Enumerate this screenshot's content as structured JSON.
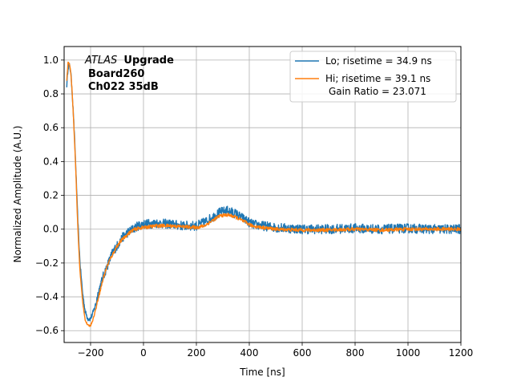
{
  "chart_data": {
    "type": "line",
    "title": "",
    "xlabel": "Time [ns]",
    "ylabel": "Normalized Amplitude (A.U.)",
    "xlim": [
      -300,
      1200
    ],
    "ylim": [
      -0.67,
      1.08
    ],
    "xticks": [
      -200,
      0,
      200,
      400,
      600,
      800,
      1000,
      1200
    ],
    "yticks": [
      -0.6,
      -0.4,
      -0.2,
      0.0,
      0.2,
      0.4,
      0.6,
      0.8,
      1.0
    ],
    "xtick_labels": [
      "−200",
      "0",
      "200",
      "400",
      "600",
      "800",
      "1000",
      "1200"
    ],
    "ytick_labels": [
      "−0.6",
      "−0.4",
      "−0.2",
      "0.0",
      "0.2",
      "0.4",
      "0.6",
      "0.8",
      "1.0"
    ],
    "grid": true,
    "legend_position": "top-right",
    "annotation": {
      "italic": "ATLAS",
      "bold": "Upgrade",
      "line2": "Board260",
      "line3": "Ch022 35dB"
    },
    "legend": {
      "lo": "Lo; risetime = 34.9 ns",
      "hi_line1": "Hi; risetime = 39.1 ns",
      "hi_line2": "Gain Ratio = 23.071"
    },
    "series": [
      {
        "name": "Lo; risetime = 34.9 ns",
        "color": "#1f77b4",
        "noise": 0.028,
        "x": [
          -290,
          -285,
          -280,
          -275,
          -270,
          -265,
          -260,
          -255,
          -250,
          -245,
          -240,
          -230,
          -220,
          -210,
          -200,
          -190,
          -180,
          -170,
          -160,
          -150,
          -140,
          -130,
          -120,
          -110,
          -100,
          -80,
          -60,
          -40,
          -20,
          0,
          50,
          100,
          150,
          200,
          230,
          260,
          290,
          320,
          350,
          380,
          410,
          450,
          500,
          600,
          700,
          800,
          900,
          1000,
          1100,
          1200
        ],
        "y": [
          0.85,
          0.96,
          0.97,
          0.93,
          0.82,
          0.68,
          0.52,
          0.33,
          0.12,
          -0.05,
          -0.2,
          -0.38,
          -0.49,
          -0.53,
          -0.53,
          -0.49,
          -0.44,
          -0.37,
          -0.32,
          -0.27,
          -0.23,
          -0.19,
          -0.15,
          -0.12,
          -0.1,
          -0.05,
          -0.02,
          0.0,
          0.02,
          0.03,
          0.035,
          0.03,
          0.02,
          0.02,
          0.04,
          0.07,
          0.1,
          0.11,
          0.09,
          0.06,
          0.03,
          0.02,
          0.01,
          0.0,
          0.0,
          0.005,
          0.0,
          0.005,
          0.0,
          0.0
        ]
      },
      {
        "name": "Hi; risetime = 39.1 ns Gain Ratio = 23.071",
        "color": "#ff7f0e",
        "noise": 0.01,
        "x": [
          -290,
          -285,
          -280,
          -275,
          -270,
          -265,
          -260,
          -255,
          -250,
          -245,
          -240,
          -230,
          -220,
          -210,
          -200,
          -190,
          -180,
          -170,
          -160,
          -150,
          -140,
          -130,
          -120,
          -110,
          -100,
          -80,
          -60,
          -40,
          -20,
          0,
          50,
          100,
          150,
          200,
          230,
          260,
          290,
          320,
          350,
          380,
          410,
          450,
          500,
          600,
          700,
          800,
          900,
          1000,
          1100,
          1200
        ],
        "y": [
          0.88,
          0.99,
          0.98,
          0.93,
          0.82,
          0.67,
          0.5,
          0.31,
          0.08,
          -0.1,
          -0.25,
          -0.43,
          -0.54,
          -0.57,
          -0.57,
          -0.53,
          -0.47,
          -0.4,
          -0.34,
          -0.28,
          -0.23,
          -0.19,
          -0.16,
          -0.13,
          -0.1,
          -0.06,
          -0.03,
          -0.005,
          0.005,
          0.01,
          0.02,
          0.02,
          0.015,
          0.01,
          0.02,
          0.05,
          0.08,
          0.085,
          0.07,
          0.045,
          0.02,
          0.01,
          0.0,
          -0.005,
          -0.005,
          0.0,
          -0.005,
          0.0,
          0.0,
          0.0
        ]
      }
    ]
  }
}
